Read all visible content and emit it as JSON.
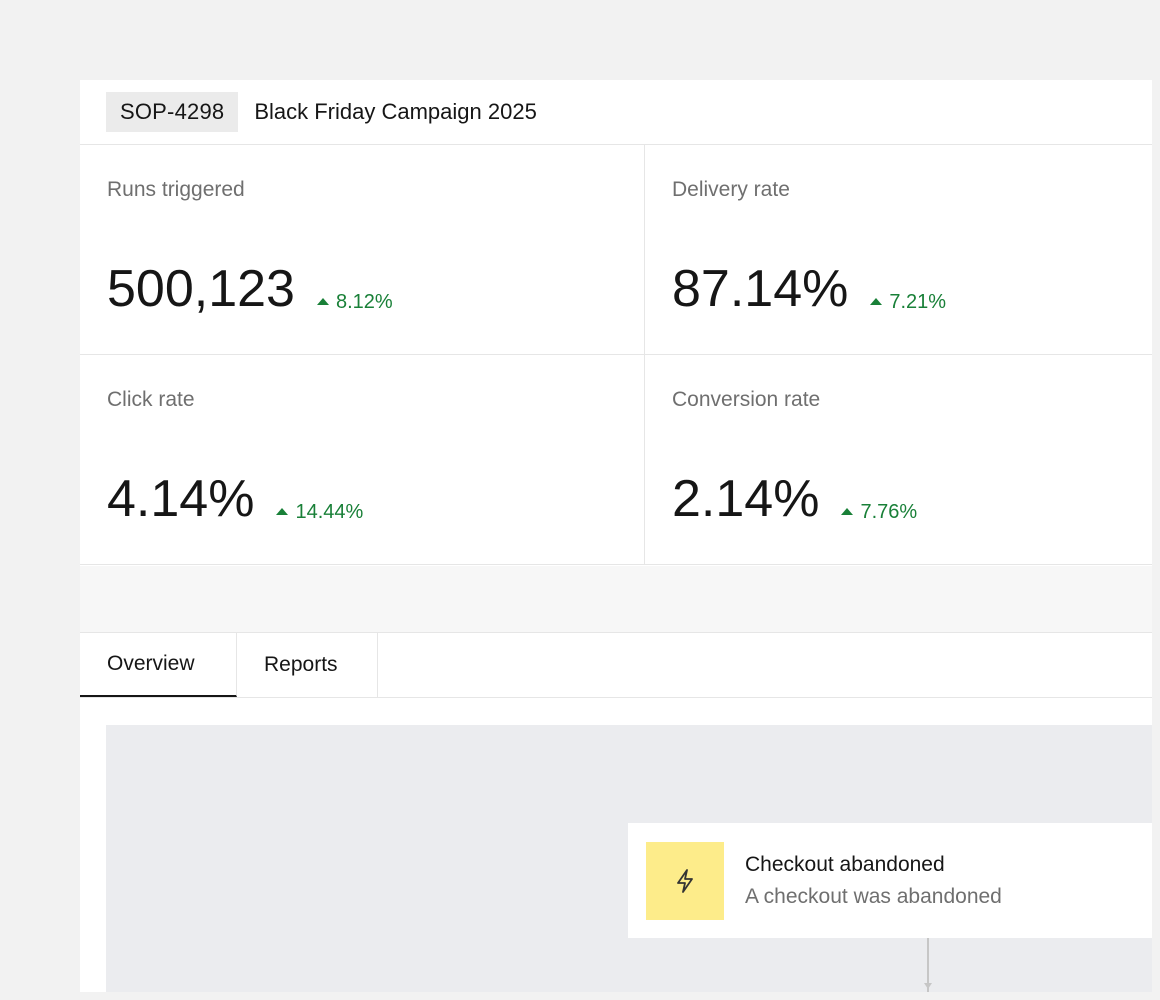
{
  "header": {
    "id_tag": "SOP-4298",
    "title": "Black Friday Campaign 2025"
  },
  "metrics": [
    {
      "label": "Runs triggered",
      "value": "500,123",
      "delta": "8.12%",
      "trend": "up"
    },
    {
      "label": "Delivery rate",
      "value": "87.14%",
      "delta": "7.21%",
      "trend": "up"
    },
    {
      "label": "Click rate",
      "value": "4.14%",
      "delta": "14.44%",
      "trend": "up"
    },
    {
      "label": "Conversion rate",
      "value": "2.14%",
      "delta": "7.76%",
      "trend": "up"
    }
  ],
  "tabs": [
    {
      "label": "Overview",
      "active": true
    },
    {
      "label": "Reports",
      "active": false
    }
  ],
  "flow": {
    "trigger_node": {
      "icon": "lightning-bolt-icon",
      "title": "Checkout abandoned",
      "subtitle": "A checkout was abandoned"
    }
  },
  "colors": {
    "positive_delta": "#198038",
    "trigger_icon_bg": "#fdec8a",
    "canvas_bg": "#ebecef"
  }
}
